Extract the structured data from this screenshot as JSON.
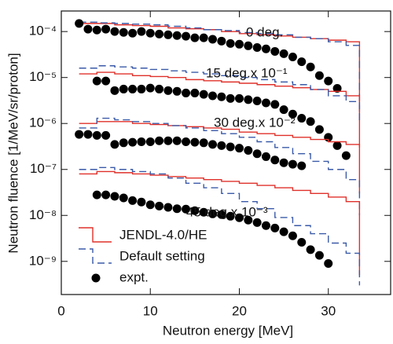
{
  "chart_data": {
    "type": "line",
    "x_label": "Neutron energy [MeV]",
    "y_label": "Neutron fluence [1/MeV/sr/proton]",
    "log_y": true,
    "xlim": [
      0,
      37
    ],
    "ylim": [
      1.9e-10,
      0.00028
    ],
    "xticks": [
      0,
      10,
      20,
      30
    ],
    "yticks": [
      {
        "value": 1e-09,
        "label": "10⁻⁹"
      },
      {
        "value": 1e-08,
        "label": "10⁻⁸"
      },
      {
        "value": 1e-07,
        "label": "10⁻⁷"
      },
      {
        "value": 1e-06,
        "label": "10⁻⁶"
      },
      {
        "value": 1e-05,
        "label": "10⁻⁵"
      },
      {
        "value": 0.0001,
        "label": "10⁻⁴"
      }
    ],
    "annotations": [
      "0 deg.",
      "15 deg.x 10⁻¹",
      "30 deg.x 10⁻²",
      "45 deg.x 10⁻³"
    ],
    "legend": "lower left",
    "series": [
      {
        "name": "JENDL-4.0/HE",
        "color": "#e0302a",
        "linestyle": "solid",
        "x": [
          2,
          4,
          6,
          8,
          10,
          12,
          14,
          16,
          18,
          20,
          22,
          24,
          26,
          28,
          30,
          32,
          33.5
        ],
        "values": [
          0.00015,
          0.00015,
          0.00014,
          0.000135,
          0.00013,
          0.00012,
          0.000115,
          0.00011,
          0.0001,
          9e-05,
          8.5e-05,
          8e-05,
          7.5e-05,
          7e-05,
          6.5e-05,
          6e-05,
          3e-06
        ]
      },
      {
        "name": "Default setting",
        "color": "#3a5aa8",
        "linestyle": "dashed",
        "x": [
          2,
          4,
          6,
          8,
          10,
          12,
          14,
          16,
          18,
          20,
          22,
          24,
          26,
          28,
          30,
          32,
          33.5
        ],
        "values": [
          0.00016,
          0.000155,
          0.00015,
          0.000145,
          0.00014,
          0.00013,
          0.00012,
          0.00011,
          0.000105,
          9.5e-05,
          9e-05,
          8.5e-05,
          7.5e-05,
          7e-05,
          6e-05,
          5e-05,
          1.5e-06
        ]
      },
      {
        "name": "expt.",
        "color": "#000000",
        "marker": "o",
        "x": [
          2,
          3,
          4,
          5,
          6,
          7,
          8,
          9,
          10,
          11,
          12,
          13,
          14,
          15,
          16,
          17,
          18,
          19,
          20,
          21,
          22,
          23,
          24,
          25,
          26,
          27,
          28,
          29,
          30,
          31
        ],
        "values": [
          0.00015,
          0.000113,
          0.000108,
          0.000113,
          0.0001,
          9.6e-05,
          9.2e-05,
          0.0001,
          9.2e-05,
          8.8e-05,
          8.5e-05,
          8.2e-05,
          7.9e-05,
          7.3e-05,
          7.3e-05,
          6.8e-05,
          6.2e-05,
          5.5e-05,
          5.3e-05,
          4.9e-05,
          4.5e-05,
          4.2e-05,
          3.7e-05,
          3.3e-05,
          2.8e-05,
          2.2e-05,
          1.7e-05,
          1.1e-05,
          8.4e-06,
          5.8e-06
        ]
      },
      {
        "color": "#e0302a",
        "linestyle": "solid",
        "x": [
          2,
          4,
          6,
          8,
          10,
          12,
          14,
          16,
          18,
          20,
          22,
          24,
          26,
          28,
          30,
          32,
          33.5
        ],
        "values": [
          1.2e-05,
          1.3e-05,
          1.2e-05,
          1.1e-05,
          1.05e-05,
          1e-05,
          9e-06,
          8.5e-06,
          8e-06,
          7.5e-06,
          7e-06,
          6.5e-06,
          6e-06,
          5.5e-06,
          5e-06,
          4e-06,
          3e-07
        ]
      },
      {
        "color": "#3a5aa8",
        "linestyle": "dashed",
        "x": [
          2,
          4,
          6,
          8,
          10,
          12,
          14,
          16,
          18,
          20,
          22,
          24,
          26,
          28,
          30,
          32,
          33.5
        ],
        "values": [
          1.6e-05,
          1.8e-05,
          1.7e-05,
          1.6e-05,
          1.5e-05,
          1.4e-05,
          1.3e-05,
          1.2e-05,
          1.1e-05,
          1e-05,
          9e-06,
          8e-06,
          7e-06,
          5.5e-06,
          4e-06,
          3e-06,
          1e-06
        ]
      },
      {
        "color": "#000000",
        "marker": "o",
        "x": [
          4,
          5,
          6,
          7,
          8,
          9,
          10,
          11,
          12,
          13,
          14,
          15,
          16,
          17,
          18,
          19,
          20,
          21,
          22,
          23,
          24,
          25,
          26,
          27,
          28,
          29,
          30,
          31,
          32
        ],
        "values": [
          8.4e-06,
          8.4e-06,
          5.2e-06,
          5.6e-06,
          5.6e-06,
          5.6e-06,
          5.9e-06,
          5.6e-06,
          5.2e-06,
          5e-06,
          4.6e-06,
          4.6e-06,
          4.3e-06,
          4e-06,
          3.8e-06,
          3.5e-06,
          3.5e-06,
          3.3e-06,
          3.1e-06,
          2.8e-06,
          2.6e-06,
          2e-06,
          1.6e-06,
          1.3e-06,
          1.1e-06,
          7.4e-07,
          5e-07,
          3.3e-07,
          2e-07
        ]
      },
      {
        "color": "#e0302a",
        "linestyle": "solid",
        "x": [
          2,
          4,
          6,
          8,
          10,
          12,
          14,
          16,
          18,
          20,
          22,
          24,
          26,
          28,
          30,
          32,
          33.5
        ],
        "values": [
          1e-06,
          1.1e-06,
          1.1e-06,
          1e-06,
          9.5e-07,
          9e-07,
          8.5e-07,
          8e-07,
          7.5e-07,
          6.5e-07,
          6e-07,
          5.5e-07,
          5e-07,
          4.5e-07,
          4e-07,
          3.5e-07,
          3e-08
        ]
      },
      {
        "color": "#3a5aa8",
        "linestyle": "dashed",
        "x": [
          2,
          4,
          6,
          8,
          10,
          12,
          14,
          16,
          18,
          20,
          22,
          24,
          26,
          28,
          30,
          32,
          33.5
        ],
        "values": [
          8e-07,
          1.3e-06,
          1.2e-06,
          1.1e-06,
          1e-06,
          9e-07,
          8e-07,
          7e-07,
          6e-07,
          5e-07,
          4e-07,
          3e-07,
          2.2e-07,
          1.5e-07,
          1e-07,
          6e-08,
          1e-08
        ]
      },
      {
        "color": "#000000",
        "marker": "o",
        "x": [
          2,
          3,
          4,
          5,
          6,
          7,
          8,
          9,
          10,
          11,
          12,
          13,
          14,
          15,
          16,
          17,
          18,
          19,
          20,
          21,
          22,
          23,
          24,
          25,
          26,
          27
        ],
        "values": [
          5.8e-07,
          5.8e-07,
          5.5e-07,
          5.5e-07,
          3.5e-07,
          3.8e-07,
          3.9e-07,
          4e-07,
          4e-07,
          4.2e-07,
          4.2e-07,
          4.2e-07,
          4e-07,
          3.9e-07,
          3.8e-07,
          3.5e-07,
          3.3e-07,
          3.1e-07,
          2.9e-07,
          2.6e-07,
          2.2e-07,
          1.9e-07,
          1.6e-07,
          1.4e-07,
          1.3e-07,
          1.2e-07
        ]
      },
      {
        "color": "#e0302a",
        "linestyle": "solid",
        "x": [
          2,
          4,
          6,
          8,
          10,
          12,
          14,
          16,
          18,
          20,
          22,
          24,
          26,
          28,
          30,
          32,
          33.5
        ],
        "values": [
          8e-08,
          9e-08,
          8.5e-08,
          8e-08,
          7.5e-08,
          7e-08,
          6.5e-08,
          6e-08,
          5.5e-08,
          5e-08,
          4.5e-08,
          4e-08,
          3.5e-08,
          3e-08,
          2.5e-08,
          2e-08,
          5e-10
        ]
      },
      {
        "color": "#3a5aa8",
        "linestyle": "dashed",
        "x": [
          2,
          4,
          6,
          8,
          10,
          12,
          14,
          16,
          18,
          20,
          22,
          24,
          26,
          28,
          30,
          32,
          33.5
        ],
        "values": [
          1e-07,
          1.1e-07,
          1e-07,
          9e-08,
          8e-08,
          6.5e-08,
          5e-08,
          4e-08,
          3e-08,
          2e-08,
          1.4e-08,
          9e-09,
          6e-09,
          4e-09,
          2.5e-09,
          1.5e-09,
          3e-10
        ]
      },
      {
        "color": "#000000",
        "marker": "o",
        "x": [
          4,
          5,
          6,
          7,
          8,
          9,
          10,
          11,
          12,
          13,
          14,
          15,
          16,
          17,
          18,
          19,
          20,
          21,
          22,
          23,
          24,
          25,
          26,
          27,
          28,
          29,
          30
        ],
        "values": [
          2.8e-08,
          2.8e-08,
          2.6e-08,
          2.4e-08,
          2.1e-08,
          1.95e-08,
          1.7e-08,
          1.6e-08,
          1.5e-08,
          1.4e-08,
          1.37e-08,
          1.27e-08,
          1.17e-08,
          1.08e-08,
          1.04e-08,
          9.6e-09,
          8.9e-09,
          7.9e-09,
          7e-09,
          6e-09,
          5.3e-09,
          4.4e-09,
          3.6e-09,
          2.6e-09,
          1.8e-09,
          1.35e-09,
          9e-10
        ]
      }
    ]
  }
}
